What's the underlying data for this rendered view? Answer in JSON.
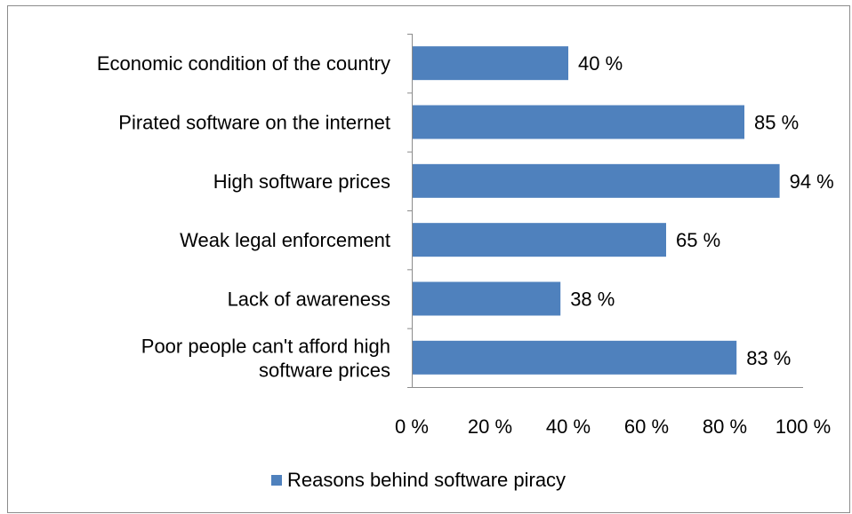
{
  "chart_data": {
    "type": "bar",
    "orientation": "horizontal",
    "categories": [
      [
        "Economic condition of the country"
      ],
      [
        "Pirated software on the internet"
      ],
      [
        "High software prices"
      ],
      [
        "Weak legal enforcement"
      ],
      [
        "Lack of awareness"
      ],
      [
        "Poor people can't afford high",
        "software prices"
      ]
    ],
    "series": [
      {
        "name": "Reasons behind software piracy",
        "values": [
          40,
          85,
          94,
          65,
          38,
          83
        ],
        "labels": [
          "40 %",
          "85 %",
          "94 %",
          "65 %",
          "38 %",
          "83 %"
        ],
        "color": "#4f81bd"
      }
    ],
    "xlim": [
      0,
      100
    ],
    "xticks": [
      "0 %",
      "20 %",
      "40 %",
      "60 %",
      "80 %",
      "100 %"
    ],
    "grid": false,
    "legend_position": "bottom"
  }
}
